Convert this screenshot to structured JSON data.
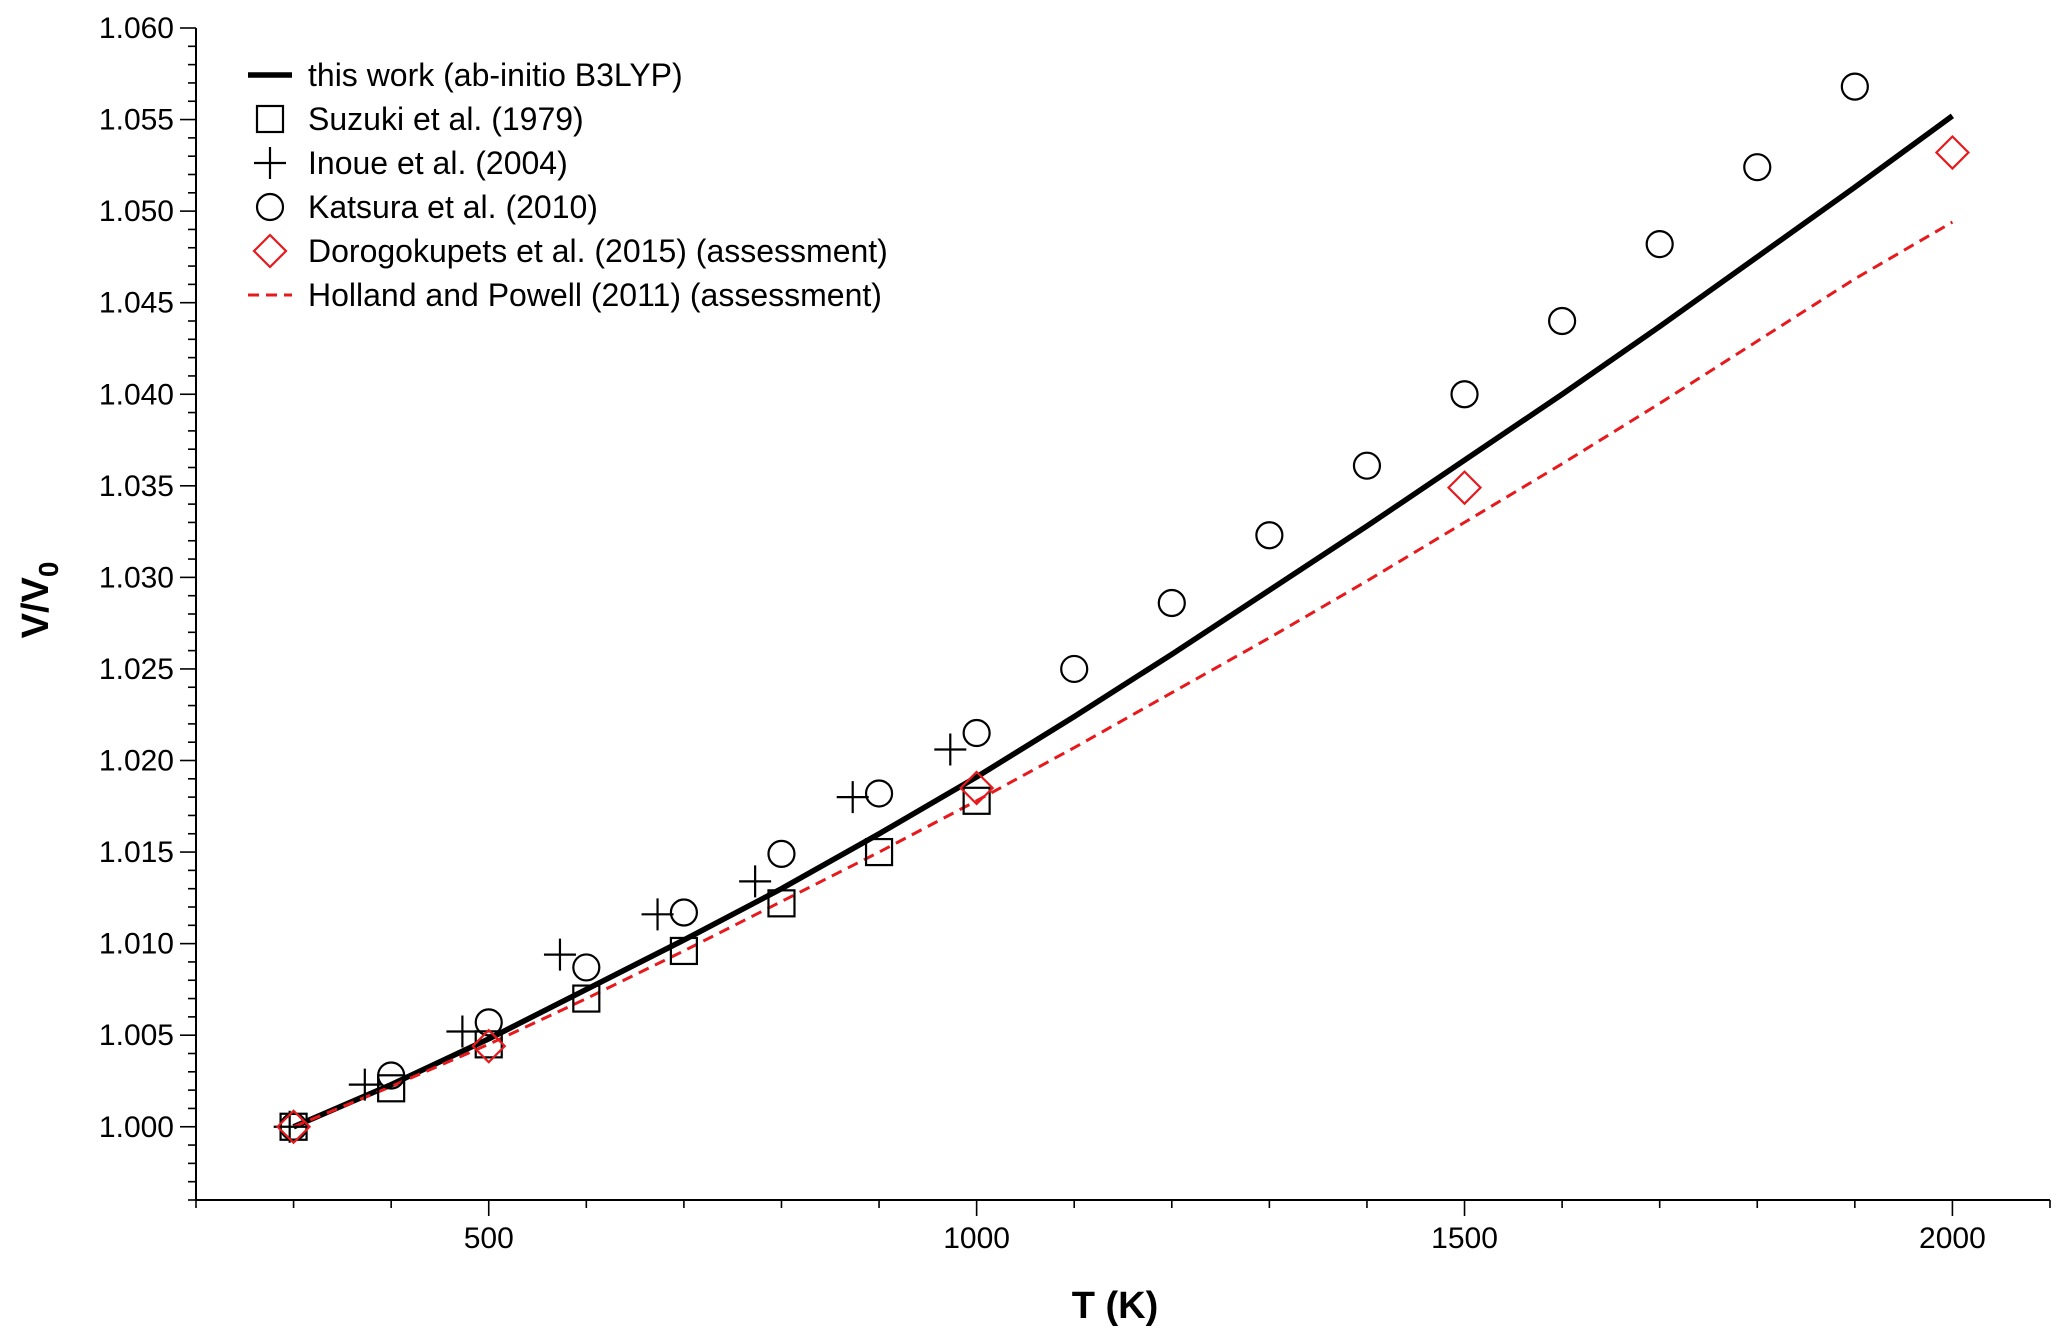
{
  "chart_data": {
    "type": "scatter",
    "xlabel": "T (K)",
    "ylabel": {
      "main": "V/V",
      "sub": "0"
    },
    "xlim": [
      200,
      2100
    ],
    "ylim": [
      0.996,
      1.06
    ],
    "x_ticks": [
      500,
      1000,
      1500,
      2000
    ],
    "y_ticks": [
      1.0,
      1.005,
      1.01,
      1.015,
      1.02,
      1.025,
      1.03,
      1.035,
      1.04,
      1.045,
      1.05,
      1.055,
      1.06
    ],
    "y_tick_labels": [
      "1.000",
      "1.005",
      "1.010",
      "1.015",
      "1.020",
      "1.025",
      "1.030",
      "1.035",
      "1.040",
      "1.045",
      "1.050",
      "1.055",
      "1.060"
    ],
    "x_tick_labels": [
      "500",
      "1000",
      "1500",
      "2000"
    ],
    "grid": false,
    "legend_position": "top-left",
    "series": [
      {
        "name": "this work (ab-initio B3LYP)",
        "kind": "line",
        "style": "solid",
        "color": "#000000",
        "x": [
          300,
          400,
          500,
          600,
          700,
          800,
          900,
          1000,
          1100,
          1200,
          1300,
          1400,
          1500,
          1600,
          1700,
          1800,
          1900,
          2000
        ],
        "y": [
          1.0,
          1.0023,
          1.0048,
          1.0075,
          1.0102,
          1.013,
          1.016,
          1.0191,
          1.0224,
          1.0258,
          1.0293,
          1.0328,
          1.0364,
          1.04,
          1.0437,
          1.0475,
          1.0513,
          1.0552
        ]
      },
      {
        "name": "Suzuki et al. (1979)",
        "kind": "marker",
        "marker": "square",
        "color": "#000000",
        "x": [
          300,
          400,
          500,
          600,
          700,
          800,
          900,
          1000
        ],
        "y": [
          1.0,
          1.0021,
          1.0045,
          1.007,
          1.0096,
          1.0122,
          1.015,
          1.0178
        ]
      },
      {
        "name": "Inoue et al. (2004)",
        "kind": "marker",
        "marker": "plus",
        "color": "#000000",
        "x": [
          296,
          373,
          473,
          573,
          673,
          773,
          873,
          973
        ],
        "y": [
          1.0,
          1.0023,
          1.0052,
          1.0094,
          1.0116,
          1.0134,
          1.018,
          1.0206
        ]
      },
      {
        "name": "Katsura et al. (2010)",
        "kind": "marker",
        "marker": "circle",
        "color": "#000000",
        "x": [
          300,
          400,
          500,
          600,
          700,
          800,
          900,
          1000,
          1100,
          1200,
          1300,
          1400,
          1500,
          1600,
          1700,
          1800,
          1900
        ],
        "y": [
          1.0,
          1.0028,
          1.0057,
          1.0087,
          1.0117,
          1.0149,
          1.0182,
          1.0215,
          1.025,
          1.0286,
          1.0323,
          1.0361,
          1.04,
          1.044,
          1.0482,
          1.0524,
          1.0568
        ]
      },
      {
        "name": "Dorogokupets et al. (2015) (assessment)",
        "kind": "marker",
        "marker": "diamond",
        "color": "#e8191c",
        "x": [
          300,
          500,
          1000,
          1500,
          2000
        ],
        "y": [
          1.0,
          1.0044,
          1.0185,
          1.0349,
          1.0532
        ]
      },
      {
        "name": "Holland and Powell (2011) (assessment)",
        "kind": "line",
        "style": "dashed",
        "color": "#e8191c",
        "x": [
          300,
          400,
          500,
          600,
          700,
          800,
          900,
          1000,
          1100,
          1200,
          1300,
          1400,
          1500,
          1600,
          1700,
          1800,
          1900,
          2000
        ],
        "y": [
          1.0,
          1.0022,
          1.0045,
          1.007,
          1.0096,
          1.0123,
          1.015,
          1.0178,
          1.0207,
          1.0237,
          1.0267,
          1.0298,
          1.033,
          1.0362,
          1.0395,
          1.0429,
          1.0463,
          1.0494
        ]
      }
    ]
  }
}
